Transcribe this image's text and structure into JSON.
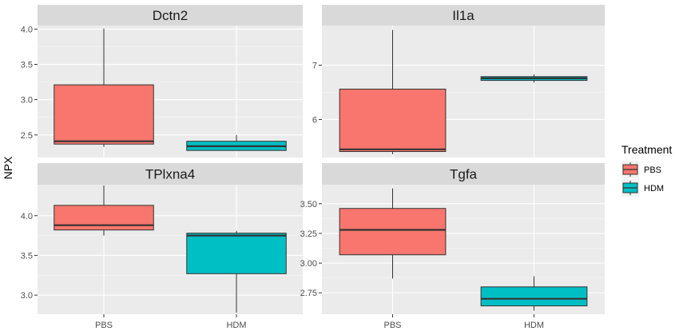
{
  "chart_data": {
    "type": "boxplot",
    "facet_layout": "2x2",
    "ylabel": "NPX",
    "categories": [
      "PBS",
      "HDM"
    ],
    "legend": {
      "title": "Treatment",
      "placement": "right",
      "items": [
        {
          "label": "PBS",
          "color": "#F8766D"
        },
        {
          "label": "HDM",
          "color": "#00BFC4"
        }
      ]
    },
    "grid": true,
    "panels": [
      {
        "title": "Dctn2",
        "ylim": [
          2.18,
          4.05
        ],
        "yticks": [
          2.5,
          3.0,
          3.5,
          4.0
        ],
        "ytick_labels": [
          "2.5",
          "3.0",
          "3.5",
          "4.0"
        ],
        "boxes": [
          {
            "group": "PBS",
            "min": 2.33,
            "q1": 2.37,
            "median": 2.41,
            "q3": 3.21,
            "max": 4.01
          },
          {
            "group": "HDM",
            "min": 2.28,
            "q1": 2.28,
            "median": 2.34,
            "q3": 2.41,
            "max": 2.5
          }
        ]
      },
      {
        "title": "Il1a",
        "ylim": [
          5.3,
          7.73
        ],
        "yticks": [
          6,
          7
        ],
        "ytick_labels": [
          "6",
          "7"
        ],
        "boxes": [
          {
            "group": "PBS",
            "min": 5.36,
            "q1": 5.41,
            "median": 5.45,
            "q3": 6.56,
            "max": 7.65
          },
          {
            "group": "HDM",
            "min": 6.68,
            "q1": 6.72,
            "median": 6.76,
            "q3": 6.79,
            "max": 6.83
          }
        ]
      },
      {
        "title": "TPlxna4",
        "ylim": [
          2.76,
          4.39
        ],
        "yticks": [
          3.0,
          3.5,
          4.0
        ],
        "ytick_labels": [
          "3.0",
          "3.5",
          "4.0"
        ],
        "boxes": [
          {
            "group": "PBS",
            "min": 3.75,
            "q1": 3.82,
            "median": 3.88,
            "q3": 4.13,
            "max": 4.38
          },
          {
            "group": "HDM",
            "min": 2.78,
            "q1": 3.27,
            "median": 3.75,
            "q3": 3.78,
            "max": 3.81
          }
        ]
      },
      {
        "title": "Tgfa",
        "ylim": [
          2.57,
          3.66
        ],
        "yticks": [
          2.75,
          3.0,
          3.25,
          3.5
        ],
        "ytick_labels": [
          "2.75",
          "3.00",
          "3.25",
          "3.50"
        ],
        "boxes": [
          {
            "group": "PBS",
            "min": 2.87,
            "q1": 3.07,
            "median": 3.28,
            "q3": 3.46,
            "max": 3.63
          },
          {
            "group": "HDM",
            "min": 2.6,
            "q1": 2.64,
            "median": 2.7,
            "q3": 2.8,
            "max": 2.89
          }
        ]
      }
    ]
  }
}
